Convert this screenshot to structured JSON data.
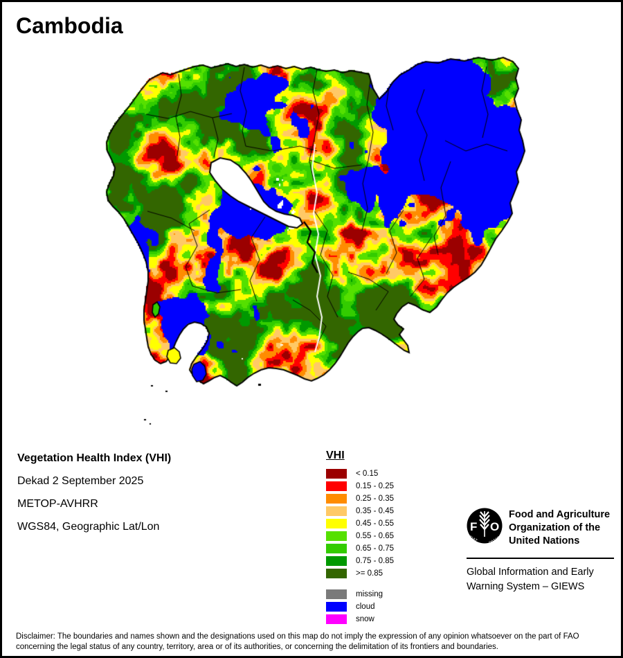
{
  "page": {
    "title": "Cambodia"
  },
  "info": {
    "heading": "Vegetation Health Index (VHI)",
    "dekad": "Dekad 2 September 2025",
    "sensor": "METOP-AVHRR",
    "projection": "WGS84, Geographic Lat/Lon"
  },
  "legend": {
    "title": "VHI",
    "classes": [
      {
        "label": "< 0.15",
        "color": "#9B0000"
      },
      {
        "label": "0.15 - 0.25",
        "color": "#FF0000"
      },
      {
        "label": "0.25 - 0.35",
        "color": "#FF8C00"
      },
      {
        "label": "0.35 - 0.45",
        "color": "#FFC966"
      },
      {
        "label": "0.45 - 0.55",
        "color": "#FFFF00"
      },
      {
        "label": "0.55 - 0.65",
        "color": "#55E000"
      },
      {
        "label": "0.65 - 0.75",
        "color": "#33CC00"
      },
      {
        "label": "0.75 - 0.85",
        "color": "#009900"
      },
      {
        "label": ">= 0.85",
        "color": "#336600"
      }
    ],
    "flags": [
      {
        "label": "missing",
        "color": "#7A7A7A"
      },
      {
        "label": "cloud",
        "color": "#0000FF"
      },
      {
        "label": "snow",
        "color": "#FF00FF"
      }
    ]
  },
  "org": {
    "logo": {
      "left_letter": "F",
      "right_letter": "O",
      "motto_left": "FIAT",
      "motto_right": "PANIS"
    },
    "name_line1": "Food and Agriculture",
    "name_line2": "Organization of the",
    "name_line3": "United Nations",
    "giews_line1": "Global Information and Early",
    "giews_line2": "Warning System – GIEWS"
  },
  "disclaimer": {
    "line1": "Disclaimer: The boundaries and names shown and the designations used on this map do not imply the expression of any opinion whatsoever on the part of FAO",
    "line2": "concerning the legal status of any country, territory, area or of its authorities, or concerning the delimitation of its frontiers and boundaries."
  }
}
